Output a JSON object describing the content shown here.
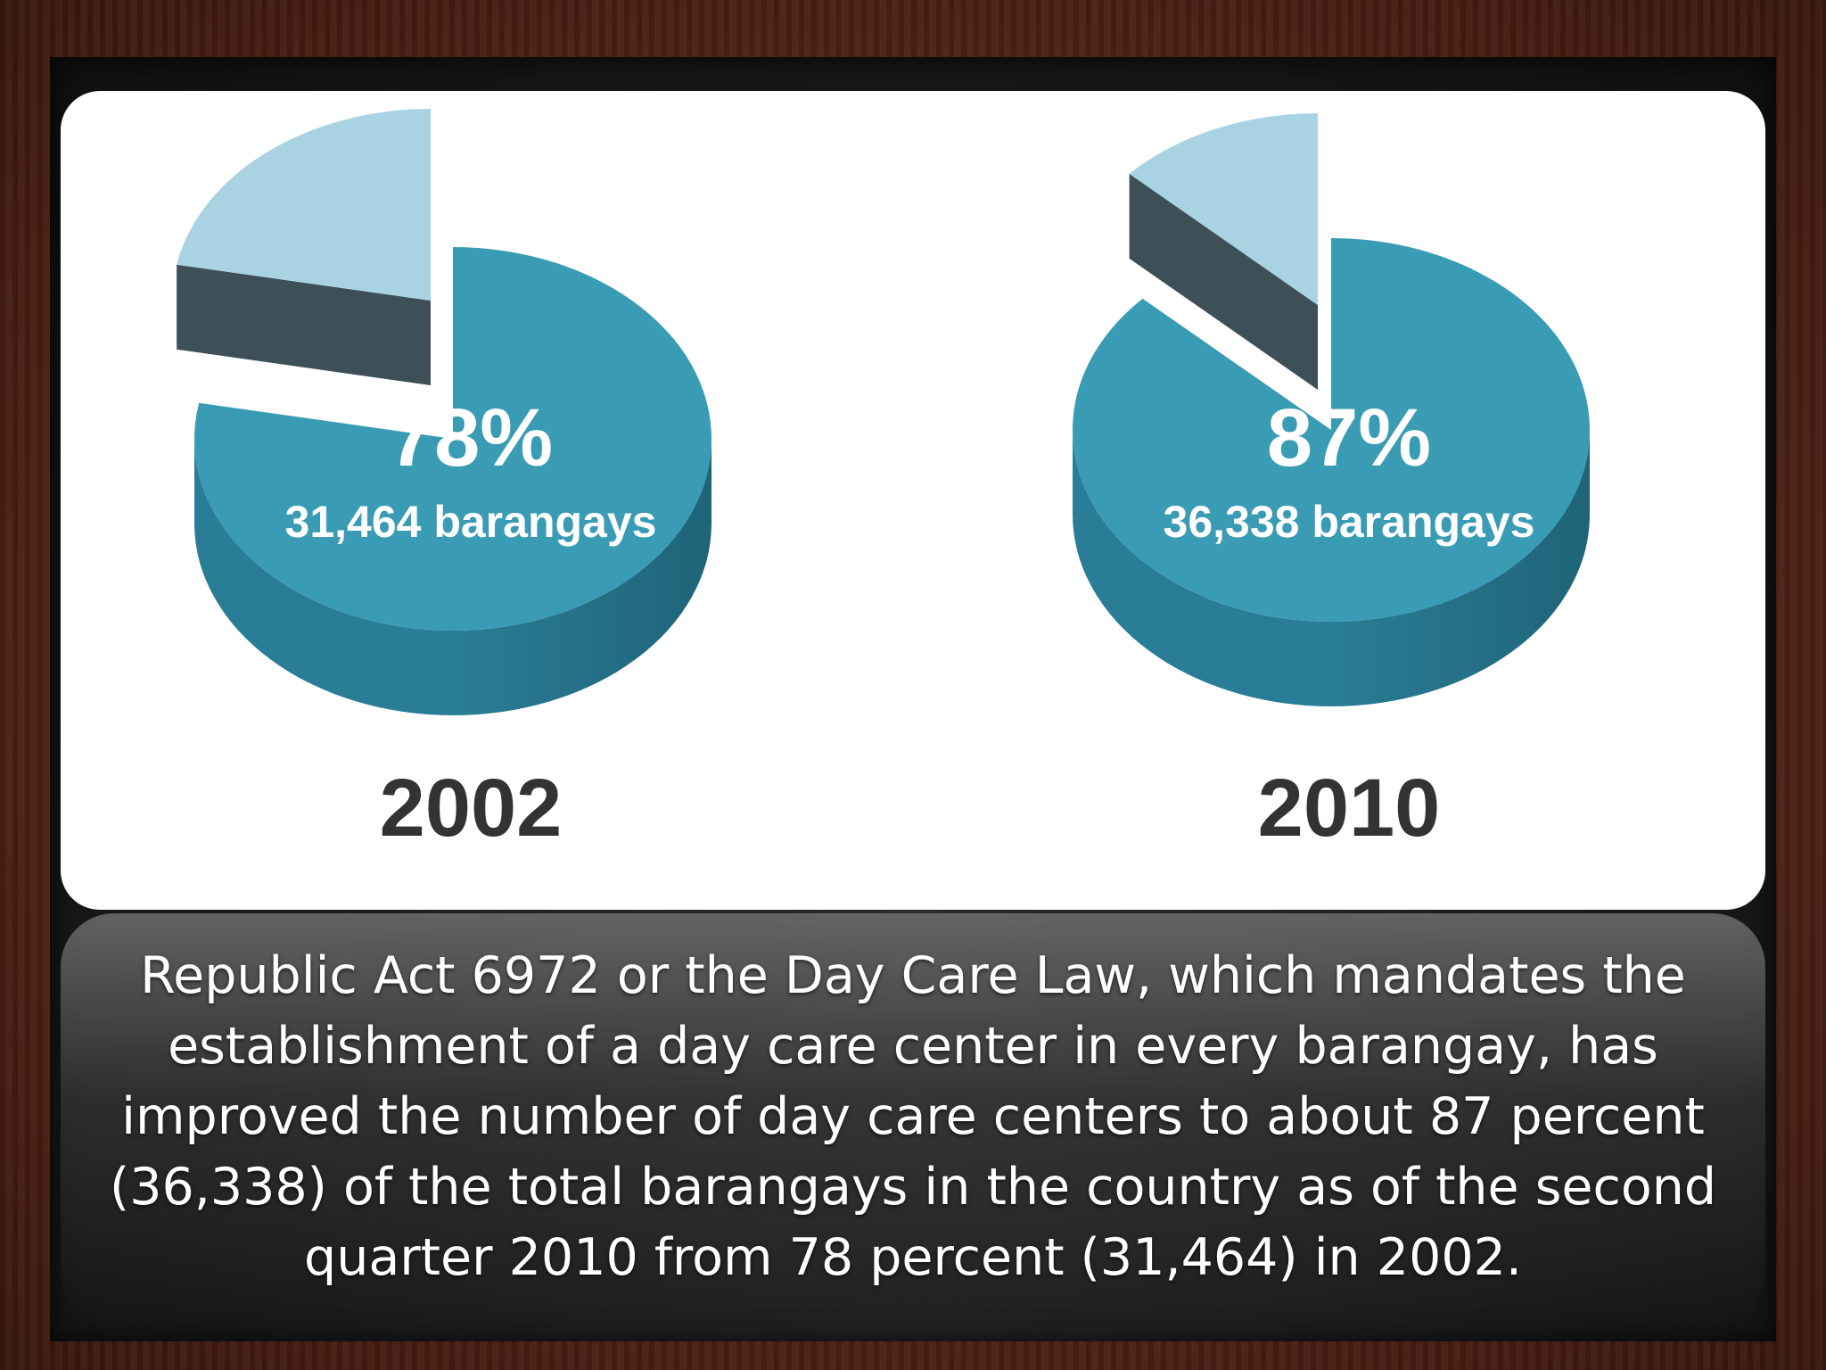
{
  "slide": {
    "caption": "Republic Act 6972 or the Day Care Law, which mandates the establishment of a day care center in every barangay,  has improved the number of day care centers to about 87 percent (36,338) of the total barangays in the country as of the second quarter 2010 from 78 percent (31,464) in 2002."
  },
  "chart_data": [
    {
      "type": "pie",
      "title": "2002",
      "slices": [
        {
          "label": "78%",
          "sublabel": "31,464 barangays",
          "value": 78,
          "color": "#3a9bb5"
        },
        {
          "label": "",
          "sublabel": "",
          "value": 22,
          "color": "#a9d3e2"
        }
      ]
    },
    {
      "type": "pie",
      "title": "2010",
      "slices": [
        {
          "label": "87%",
          "sublabel": "36,338 barangays",
          "value": 87,
          "color": "#3a9bb5"
        },
        {
          "label": "",
          "sublabel": "",
          "value": 13,
          "color": "#a9d3e2"
        }
      ]
    }
  ],
  "colors": {
    "main_top": "#3a9bb5",
    "main_side": "#2a7d96",
    "main_side_dark": "#1f6478",
    "exploded_top": "#a9d3e2",
    "exploded_side": "#3d4f57"
  }
}
